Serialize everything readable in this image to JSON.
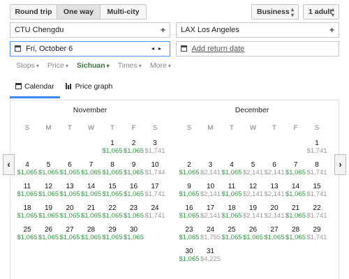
{
  "trip_type": {
    "options": [
      "Round trip",
      "One way",
      "Multi-city"
    ],
    "selected": "One way"
  },
  "cabin": {
    "value": "Business",
    "icon": "up-down-arrows-icon"
  },
  "passengers": {
    "value": "1 adult",
    "icon": "up-down-arrows-icon"
  },
  "origin": {
    "value": "CTU Chengdu",
    "icon": "plus-icon"
  },
  "destination": {
    "value": "LAX Los Angeles",
    "icon": "plus-icon"
  },
  "depart_date": {
    "value": "Fri, October 6",
    "icon": "calendar-icon",
    "prev": "◂",
    "next": "▸"
  },
  "return_date": {
    "value": "Add return date",
    "icon": "calendar-icon"
  },
  "filters": [
    {
      "label": "Stops",
      "highlight": false
    },
    {
      "label": "Price",
      "highlight": false
    },
    {
      "label": "Sichuan",
      "highlight": true
    },
    {
      "label": "Times",
      "highlight": false
    },
    {
      "label": "More",
      "highlight": false
    }
  ],
  "view_tabs": [
    {
      "label": "Calendar",
      "icon": "calendar-icon",
      "selected": true
    },
    {
      "label": "Price graph",
      "icon": "bar-chart-icon",
      "selected": false
    }
  ],
  "weekdays": [
    "S",
    "M",
    "T",
    "W",
    "T",
    "F",
    "S"
  ],
  "months": [
    {
      "name": "November",
      "start_weekday": 3,
      "days": [
        {
          "d": "1",
          "p": "$1,065",
          "c": "g"
        },
        {
          "d": "2",
          "p": "$1,065",
          "c": "g"
        },
        {
          "d": "3",
          "p": "$1,741",
          "c": "y"
        },
        {
          "d": "4",
          "p": "$1,065",
          "c": "g"
        },
        {
          "d": "5",
          "p": "$1,065",
          "c": "g"
        },
        {
          "d": "6",
          "p": "$1,065",
          "c": "g"
        },
        {
          "d": "7",
          "p": "$1,065",
          "c": "g"
        },
        {
          "d": "8",
          "p": "$1,065",
          "c": "g"
        },
        {
          "d": "9",
          "p": "$1,065",
          "c": "g"
        },
        {
          "d": "10",
          "p": "$1,744",
          "c": "y"
        },
        {
          "d": "11",
          "p": "$1,065",
          "c": "g"
        },
        {
          "d": "12",
          "p": "$1,065",
          "c": "g"
        },
        {
          "d": "13",
          "p": "$1,065",
          "c": "g"
        },
        {
          "d": "14",
          "p": "$1,065",
          "c": "g"
        },
        {
          "d": "15",
          "p": "$1,065",
          "c": "g"
        },
        {
          "d": "16",
          "p": "$1,065",
          "c": "g"
        },
        {
          "d": "17",
          "p": "$1,741",
          "c": "y"
        },
        {
          "d": "18",
          "p": "$1,065",
          "c": "g"
        },
        {
          "d": "19",
          "p": "$1,065",
          "c": "g"
        },
        {
          "d": "20",
          "p": "$1,065",
          "c": "g"
        },
        {
          "d": "21",
          "p": "$1,065",
          "c": "g"
        },
        {
          "d": "22",
          "p": "$1,065",
          "c": "g"
        },
        {
          "d": "23",
          "p": "$1,065",
          "c": "g"
        },
        {
          "d": "24",
          "p": "$1,741",
          "c": "y"
        },
        {
          "d": "25",
          "p": "$1,065",
          "c": "g"
        },
        {
          "d": "26",
          "p": "$1,065",
          "c": "g"
        },
        {
          "d": "27",
          "p": "$1,065",
          "c": "g"
        },
        {
          "d": "28",
          "p": "$1,065",
          "c": "g"
        },
        {
          "d": "29",
          "p": "$1,065",
          "c": "g"
        },
        {
          "d": "30",
          "p": "$1,065",
          "c": "g"
        }
      ]
    },
    {
      "name": "December",
      "start_weekday": 5,
      "days": [
        {
          "d": "1",
          "p": "$1,741",
          "c": "y"
        },
        {
          "d": "2",
          "p": "$1,065",
          "c": "g"
        },
        {
          "d": "3",
          "p": "$2,141",
          "c": "y"
        },
        {
          "d": "4",
          "p": "$1,065",
          "c": "g"
        },
        {
          "d": "5",
          "p": "$2,141",
          "c": "y"
        },
        {
          "d": "6",
          "p": "$2,141",
          "c": "y"
        },
        {
          "d": "7",
          "p": "$1,065",
          "c": "g"
        },
        {
          "d": "8",
          "p": "$1,741",
          "c": "y"
        },
        {
          "d": "9",
          "p": "$1,065",
          "c": "g"
        },
        {
          "d": "10",
          "p": "$2,141",
          "c": "y"
        },
        {
          "d": "11",
          "p": "$1,065",
          "c": "g"
        },
        {
          "d": "12",
          "p": "$2,141",
          "c": "y"
        },
        {
          "d": "13",
          "p": "$2,141",
          "c": "y"
        },
        {
          "d": "14",
          "p": "$1,065",
          "c": "g"
        },
        {
          "d": "15",
          "p": "$1,741",
          "c": "y"
        },
        {
          "d": "16",
          "p": "$1,065",
          "c": "g"
        },
        {
          "d": "17",
          "p": "$2,141",
          "c": "y"
        },
        {
          "d": "18",
          "p": "$1,065",
          "c": "g"
        },
        {
          "d": "19",
          "p": "$2,141",
          "c": "y"
        },
        {
          "d": "20",
          "p": "$2,141",
          "c": "y"
        },
        {
          "d": "21",
          "p": "$1,065",
          "c": "g"
        },
        {
          "d": "22",
          "p": "$1,741",
          "c": "y"
        },
        {
          "d": "23",
          "p": "$1,065",
          "c": "g"
        },
        {
          "d": "24",
          "p": "$1,755",
          "c": "y"
        },
        {
          "d": "25",
          "p": "$1,065",
          "c": "g"
        },
        {
          "d": "26",
          "p": "$1,065",
          "c": "g"
        },
        {
          "d": "27",
          "p": "$1,065",
          "c": "g"
        },
        {
          "d": "28",
          "p": "$1,065",
          "c": "g"
        },
        {
          "d": "29",
          "p": "$1,741",
          "c": "y"
        },
        {
          "d": "30",
          "p": "$1,065",
          "c": "g"
        },
        {
          "d": "31",
          "p": "$4,225",
          "c": "y"
        }
      ]
    }
  ],
  "nav": {
    "prev": "‹",
    "next": "›"
  },
  "colors": {
    "cheap": "#2f9a40",
    "regular": "#999999",
    "accent": "#4285f4"
  }
}
